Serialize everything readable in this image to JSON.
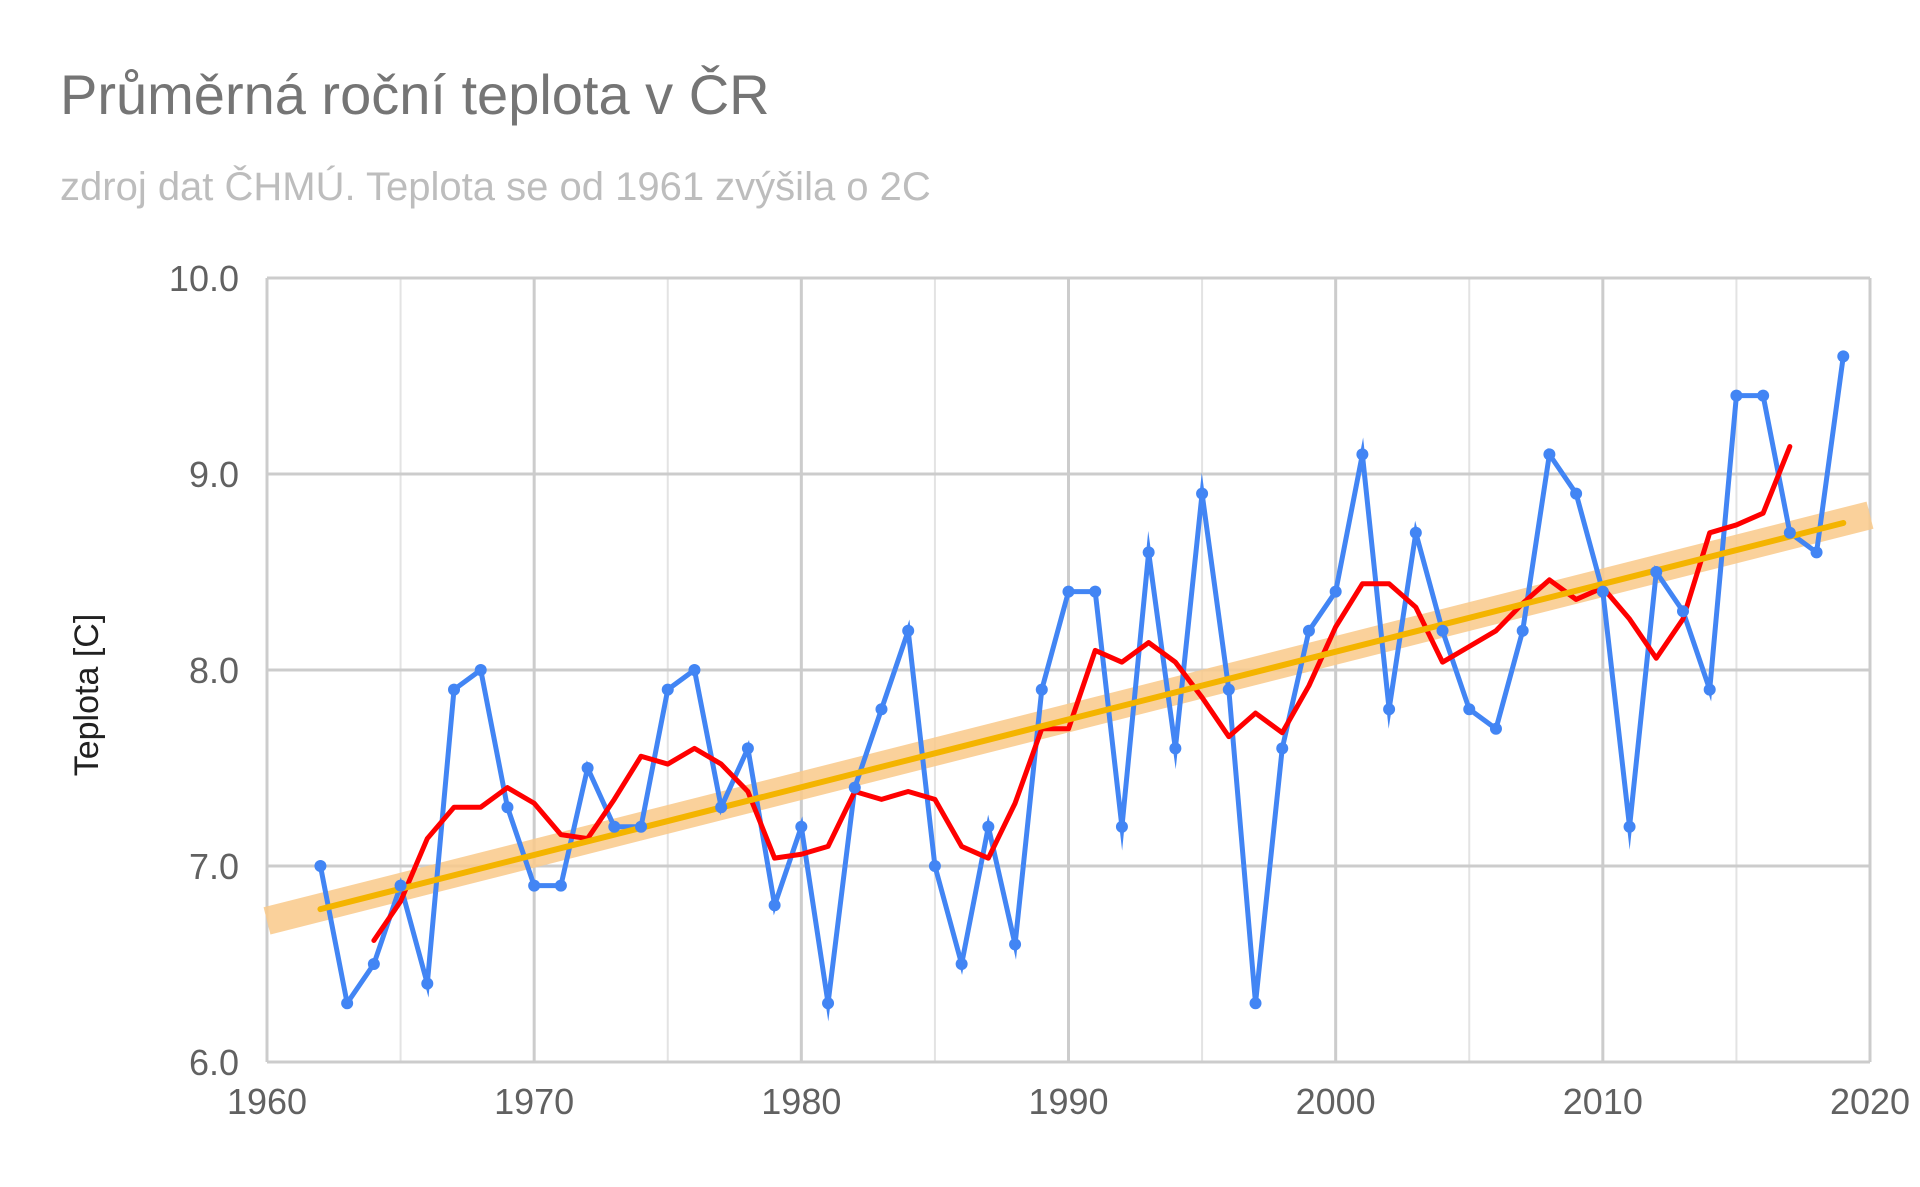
{
  "chart_data": {
    "type": "line",
    "title": "Průměrná roční teplota v ČR",
    "subtitle": "zdroj dat ČHMÚ. Teplota se od 1961 zvýšila o 2C",
    "xlabel": "",
    "ylabel": "Teplota [C]",
    "xlim": [
      1960,
      2020
    ],
    "ylim": [
      6.0,
      10.0
    ],
    "x_ticks": [
      "1960",
      "1970",
      "1980",
      "1990",
      "2000",
      "2010",
      "2020"
    ],
    "y_ticks": [
      "6.0",
      "7.0",
      "8.0",
      "9.0",
      "10.0"
    ],
    "grid": true,
    "legend": "none",
    "series": [
      {
        "color": "#4285f4",
        "style": "line-with-markers",
        "points": [
          [
            1962,
            7.0
          ],
          [
            1963,
            6.3
          ],
          [
            1964,
            6.5
          ],
          [
            1965,
            6.9
          ],
          [
            1966,
            6.4
          ],
          [
            1967,
            7.9
          ],
          [
            1968,
            8.0
          ],
          [
            1969,
            7.3
          ],
          [
            1970,
            6.9
          ],
          [
            1971,
            6.9
          ],
          [
            1972,
            7.5
          ],
          [
            1973,
            7.2
          ],
          [
            1974,
            7.2
          ],
          [
            1975,
            7.9
          ],
          [
            1976,
            8.0
          ],
          [
            1977,
            7.3
          ],
          [
            1978,
            7.6
          ],
          [
            1979,
            6.8
          ],
          [
            1980,
            7.2
          ],
          [
            1981,
            6.3
          ],
          [
            1982,
            7.4
          ],
          [
            1983,
            7.8
          ],
          [
            1984,
            8.2
          ],
          [
            1985,
            7.0
          ],
          [
            1986,
            6.5
          ],
          [
            1987,
            7.2
          ],
          [
            1988,
            6.6
          ],
          [
            1989,
            7.9
          ],
          [
            1990,
            8.4
          ],
          [
            1991,
            8.4
          ],
          [
            1992,
            7.2
          ],
          [
            1993,
            8.6
          ],
          [
            1994,
            7.6
          ],
          [
            1995,
            8.9
          ],
          [
            1996,
            7.9
          ],
          [
            1997,
            6.3
          ],
          [
            1998,
            7.6
          ],
          [
            1999,
            8.2
          ],
          [
            2000,
            8.4
          ],
          [
            2001,
            9.1
          ],
          [
            2002,
            7.8
          ],
          [
            2003,
            8.7
          ],
          [
            2004,
            8.2
          ],
          [
            2005,
            7.8
          ],
          [
            2006,
            7.7
          ],
          [
            2007,
            8.2
          ],
          [
            2008,
            9.1
          ],
          [
            2009,
            8.9
          ],
          [
            2010,
            8.4
          ],
          [
            2011,
            7.2
          ],
          [
            2012,
            8.5
          ],
          [
            2013,
            8.3
          ],
          [
            2014,
            7.9
          ],
          [
            2015,
            9.4
          ],
          [
            2016,
            9.4
          ],
          [
            2017,
            8.7
          ],
          [
            2018,
            8.6
          ],
          [
            2019,
            9.6
          ]
        ]
      },
      {
        "color": "#ff0000",
        "style": "moving-average",
        "points": [
          [
            1964,
            6.62
          ],
          [
            1965,
            6.82
          ],
          [
            1966,
            7.14
          ],
          [
            1967,
            7.3
          ],
          [
            1968,
            7.3
          ],
          [
            1969,
            7.4
          ],
          [
            1970,
            7.32
          ],
          [
            1971,
            7.16
          ],
          [
            1972,
            7.14
          ],
          [
            1973,
            7.34
          ],
          [
            1974,
            7.56
          ],
          [
            1975,
            7.52
          ],
          [
            1976,
            7.6
          ],
          [
            1977,
            7.52
          ],
          [
            1978,
            7.38
          ],
          [
            1979,
            7.04
          ],
          [
            1980,
            7.06
          ],
          [
            1981,
            7.1
          ],
          [
            1982,
            7.38
          ],
          [
            1983,
            7.34
          ],
          [
            1984,
            7.38
          ],
          [
            1985,
            7.34
          ],
          [
            1986,
            7.1
          ],
          [
            1987,
            7.04
          ],
          [
            1988,
            7.32
          ],
          [
            1989,
            7.7
          ],
          [
            1990,
            7.7
          ],
          [
            1991,
            8.1
          ],
          [
            1992,
            8.04
          ],
          [
            1993,
            8.14
          ],
          [
            1994,
            8.04
          ],
          [
            1995,
            7.86
          ],
          [
            1996,
            7.66
          ],
          [
            1997,
            7.78
          ],
          [
            1998,
            7.68
          ],
          [
            1999,
            7.92
          ],
          [
            2000,
            8.22
          ],
          [
            2001,
            8.44
          ],
          [
            2002,
            8.44
          ],
          [
            2003,
            8.32
          ],
          [
            2004,
            8.04
          ],
          [
            2005,
            8.12
          ],
          [
            2006,
            8.2
          ],
          [
            2007,
            8.34
          ],
          [
            2008,
            8.46
          ],
          [
            2009,
            8.36
          ],
          [
            2010,
            8.42
          ],
          [
            2011,
            8.26
          ],
          [
            2012,
            8.06
          ],
          [
            2013,
            8.26
          ],
          [
            2014,
            8.7
          ],
          [
            2015,
            8.74
          ],
          [
            2016,
            8.8
          ],
          [
            2017,
            9.14
          ]
        ]
      },
      {
        "color": "#f4b400",
        "style": "trendline",
        "points": [
          [
            1962,
            6.78
          ],
          [
            2019,
            8.75
          ]
        ]
      },
      {
        "color": "#f9c98a",
        "style": "trendline-band",
        "points": [
          [
            1960,
            6.72
          ],
          [
            2020,
            8.79
          ]
        ]
      }
    ]
  }
}
